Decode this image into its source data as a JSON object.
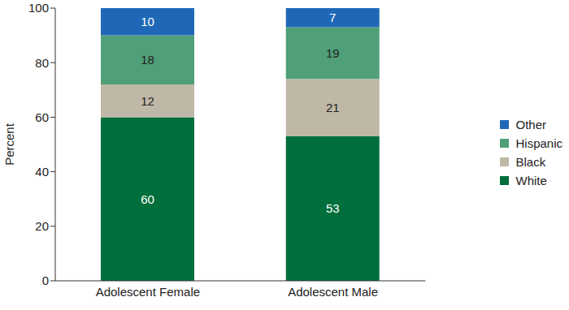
{
  "chart_data": {
    "type": "bar",
    "stacked": true,
    "data_labels": true,
    "legend": "right",
    "grid": false,
    "y_label": "Percent",
    "categories": [
      "Adolescent Female",
      "Adolescent Male"
    ],
    "ylim": [
      0,
      100
    ],
    "yticks": [
      0,
      20,
      40,
      60,
      80,
      100
    ],
    "series": [
      {
        "name": "White",
        "color": "#006f3c",
        "values": [
          60,
          53
        ]
      },
      {
        "name": "Black",
        "color": "#bfb8a6",
        "values": [
          12,
          21
        ]
      },
      {
        "name": "Hispanic",
        "color": "#4f9f78",
        "values": [
          18,
          19
        ]
      },
      {
        "name": "Other",
        "color": "#1f68b7",
        "values": [
          10,
          7
        ]
      }
    ]
  }
}
